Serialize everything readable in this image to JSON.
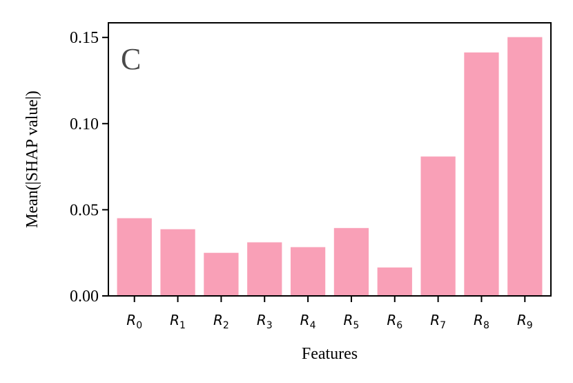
{
  "chart_data": {
    "type": "bar",
    "panel_label": "C",
    "xlabel": "Features",
    "ylabel": "Mean(|SHAP value|)",
    "categories": [
      {
        "base": "R",
        "sub": "0"
      },
      {
        "base": "R",
        "sub": "1"
      },
      {
        "base": "R",
        "sub": "2"
      },
      {
        "base": "R",
        "sub": "3"
      },
      {
        "base": "R",
        "sub": "4"
      },
      {
        "base": "R",
        "sub": "5"
      },
      {
        "base": "R",
        "sub": "6"
      },
      {
        "base": "R",
        "sub": "7"
      },
      {
        "base": "R",
        "sub": "8"
      },
      {
        "base": "R",
        "sub": "9"
      }
    ],
    "values": [
      0.0451,
      0.0387,
      0.025,
      0.0311,
      0.0283,
      0.0394,
      0.0165,
      0.0809,
      0.1413,
      0.1502
    ],
    "ylim": [
      0,
      0.1585
    ],
    "yticks": [
      0.0,
      0.05,
      0.1,
      0.15
    ],
    "ytick_labels": [
      "0.00",
      "0.05",
      "0.10",
      "0.15"
    ],
    "bar_color": "#f9a0b7",
    "grid": false,
    "legend": "none"
  }
}
